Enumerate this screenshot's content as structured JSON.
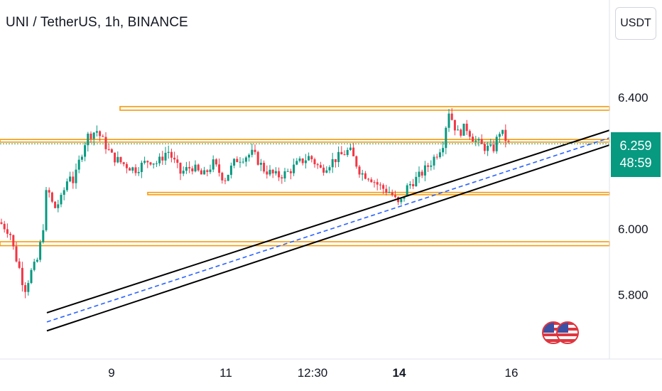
{
  "header": {
    "title": "UNI / TetherUS, 1h, BINANCE"
  },
  "currency_button": {
    "label": "USDT"
  },
  "last_price": {
    "price": "6.259",
    "countdown": "48:59",
    "color": "#089981"
  },
  "chart_data": {
    "type": "candlestick",
    "symbol": "UNI / TetherUS",
    "interval": "1h",
    "exchange": "BINANCE",
    "y_ticks": [
      {
        "label": "6.400",
        "value": 6.4
      },
      {
        "label": "6.000",
        "value": 6.0
      },
      {
        "label": "5.800",
        "value": 5.8
      }
    ],
    "x_ticks": [
      {
        "label": "9",
        "bold": false
      },
      {
        "label": "11",
        "bold": false
      },
      {
        "label": "12:30",
        "bold": false
      },
      {
        "label": "14",
        "bold": true
      },
      {
        "label": "16",
        "bold": false
      }
    ],
    "ylim": [
      5.66,
      6.54
    ],
    "grid": false,
    "colors": {
      "up": "#089981",
      "down": "#f23645",
      "zone": "#f59a0b",
      "channel": "#000000",
      "midline": "#2962ff"
    },
    "horizontal_zones": [
      {
        "low": 6.361,
        "high": 6.372
      },
      {
        "low": 6.264,
        "high": 6.272
      },
      {
        "low": 6.104,
        "high": 6.111
      },
      {
        "low": 5.949,
        "high": 5.961
      }
    ],
    "channel": {
      "upper": {
        "start": {
          "bar": 0,
          "price": 5.745
        },
        "end": {
          "bar": 166,
          "price": 6.3
        }
      },
      "lower": {
        "start": {
          "bar": 0,
          "price": 5.69
        },
        "end": {
          "bar": 166,
          "price": 6.255
        }
      },
      "middle": {
        "start": {
          "bar": 0,
          "price": 5.717
        },
        "end": {
          "bar": 166,
          "price": 6.277
        }
      }
    },
    "path_points": [
      [
        0,
        6.02
      ],
      [
        14,
        5.99
      ],
      [
        20,
        5.93
      ],
      [
        30,
        5.86
      ],
      [
        34,
        5.81
      ],
      [
        44,
        5.87
      ],
      [
        52,
        5.9
      ],
      [
        60,
        5.99
      ],
      [
        66,
        6.13
      ],
      [
        76,
        6.06
      ],
      [
        86,
        6.09
      ],
      [
        98,
        6.17
      ],
      [
        104,
        6.14
      ],
      [
        112,
        6.21
      ],
      [
        122,
        6.28
      ],
      [
        136,
        6.3
      ],
      [
        158,
        6.22
      ],
      [
        172,
        6.2
      ],
      [
        190,
        6.18
      ],
      [
        210,
        6.21
      ],
      [
        222,
        6.2
      ],
      [
        236,
        6.24
      ],
      [
        254,
        6.17
      ],
      [
        270,
        6.19
      ],
      [
        286,
        6.16
      ],
      [
        300,
        6.2
      ],
      [
        316,
        6.15
      ],
      [
        332,
        6.21
      ],
      [
        356,
        6.23
      ],
      [
        372,
        6.18
      ],
      [
        390,
        6.16
      ],
      [
        404,
        6.17
      ],
      [
        420,
        6.2
      ],
      [
        436,
        6.22
      ],
      [
        452,
        6.18
      ],
      [
        470,
        6.21
      ],
      [
        492,
        6.24
      ],
      [
        508,
        6.17
      ],
      [
        520,
        6.16
      ],
      [
        534,
        6.13
      ],
      [
        550,
        6.11
      ],
      [
        562,
        6.07
      ],
      [
        574,
        6.13
      ],
      [
        590,
        6.16
      ],
      [
        606,
        6.2
      ],
      [
        618,
        6.24
      ],
      [
        626,
        6.27
      ],
      [
        630,
        6.37
      ],
      [
        644,
        6.29
      ],
      [
        656,
        6.31
      ],
      [
        668,
        6.27
      ],
      [
        680,
        6.25
      ],
      [
        694,
        6.24
      ],
      [
        704,
        6.3
      ],
      [
        716,
        6.259
      ]
    ]
  },
  "icons": {
    "flags": "us-flag-pair-icon"
  }
}
